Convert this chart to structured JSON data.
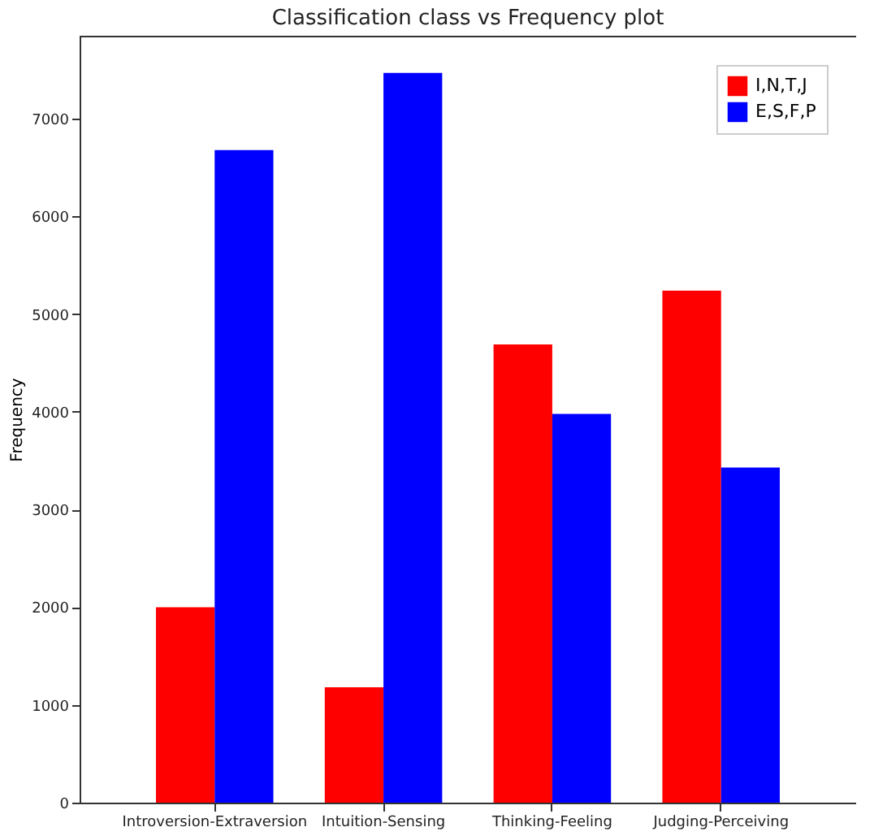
{
  "chart_data": {
    "type": "bar",
    "title": "Classification class vs Frequency plot",
    "ylabel": "Frequency",
    "categories": [
      "Introversion-Extraversion",
      "Intuition-Sensing",
      "Thinking-Feeling",
      "Judging-Perceiving"
    ],
    "series": [
      {
        "name": "I,N,T,J",
        "color": "#ff0000",
        "values": [
          2000,
          1180,
          4690,
          5240
        ]
      },
      {
        "name": "E,S,F,P",
        "color": "#0000ff",
        "values": [
          6680,
          7470,
          3980,
          3430
        ]
      }
    ],
    "ylim": [
      0,
      7850
    ],
    "yticks": [
      0,
      1000,
      2000,
      3000,
      4000,
      5000,
      6000,
      7000
    ],
    "grid": false,
    "legend": "top right"
  }
}
